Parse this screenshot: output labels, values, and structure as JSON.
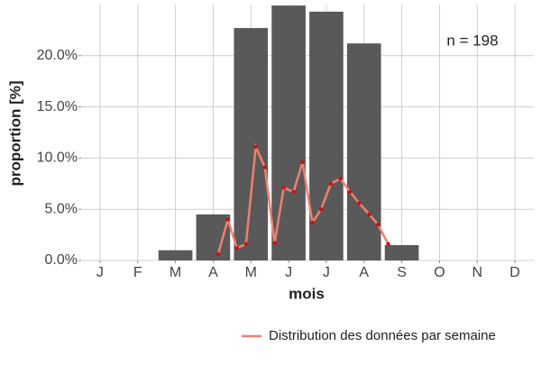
{
  "chart_data": {
    "type": "bar",
    "annotation": "n = 198",
    "x_label": "mois",
    "y_label": "proportion [%]",
    "categories": [
      "J",
      "F",
      "M",
      "A",
      "M",
      "J",
      "J",
      "A",
      "S",
      "O",
      "N",
      "D"
    ],
    "values": [
      0,
      0,
      1.0,
      4.5,
      22.7,
      24.9,
      24.3,
      21.2,
      1.5,
      0,
      0,
      0
    ],
    "color": "#595959",
    "xlim": [
      0.5,
      12.5
    ],
    "ylim": [
      0,
      25
    ],
    "yticks": [
      {
        "value": 0,
        "label": "0.0%"
      },
      {
        "value": 5,
        "label": "5.0%"
      },
      {
        "value": 10,
        "label": "10.0%"
      },
      {
        "value": 15,
        "label": "15.0%"
      },
      {
        "value": 20,
        "label": "20.0%"
      }
    ],
    "grid": true,
    "line": {
      "name": "Distribution des données par semaine",
      "color": "#f08070",
      "point_color": "#cc1010",
      "x": [
        4.13,
        4.39,
        4.63,
        4.87,
        5.13,
        5.37,
        5.63,
        5.87,
        6.13,
        6.37,
        6.63,
        6.86,
        7.12,
        7.37,
        7.63,
        7.87,
        8.14,
        8.37,
        8.64
      ],
      "values": [
        0.6,
        4.0,
        1.2,
        1.6,
        11.1,
        9.1,
        1.7,
        7.1,
        6.7,
        9.6,
        3.7,
        5.0,
        7.5,
        8.0,
        6.7,
        5.6,
        4.5,
        3.5,
        1.6
      ]
    },
    "legend_position": "bottom"
  }
}
